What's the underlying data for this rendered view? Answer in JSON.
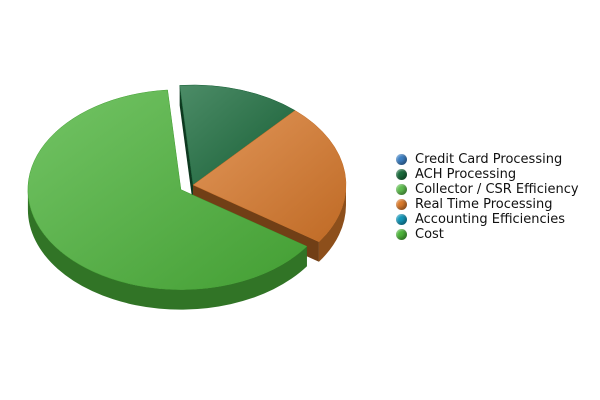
{
  "chart_data": {
    "type": "pie",
    "style": "3d-exploded",
    "title": "",
    "legend_position": "right",
    "series": [
      {
        "name": "Credit Card Processing",
        "value": 0,
        "color": "#3d7fc2"
      },
      {
        "name": "ACH Processing",
        "value": 13,
        "color": "#1a6b3c"
      },
      {
        "name": "Collector / CSR Efficiency",
        "value": 0,
        "color": "#5fbd4f"
      },
      {
        "name": "Real Time Processing",
        "value": 23,
        "color": "#d9792a"
      },
      {
        "name": "Accounting Efficiencies",
        "value": 0,
        "color": "#1496b8"
      },
      {
        "name": "Cost",
        "value": 64,
        "color": "#4cb33a"
      }
    ]
  }
}
